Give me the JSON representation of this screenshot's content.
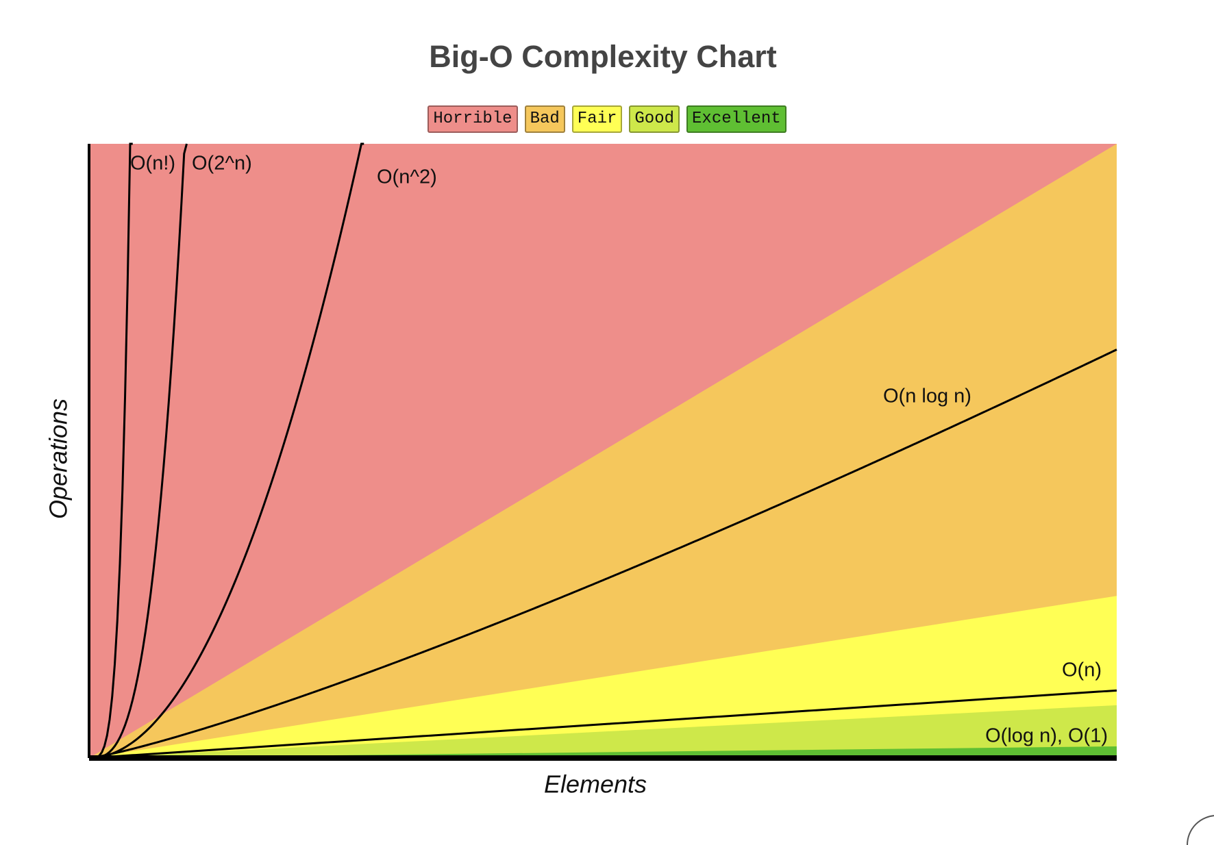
{
  "title": "Big-O Complexity Chart",
  "legend": [
    {
      "label": "Horrible",
      "color": "#ee8e8a"
    },
    {
      "label": "Bad",
      "color": "#f5c75c"
    },
    {
      "label": "Fair",
      "color": "#ffff55"
    },
    {
      "label": "Good",
      "color": "#cee84a"
    },
    {
      "label": "Excellent",
      "color": "#5fbf33"
    }
  ],
  "curves": [
    "O(n!)",
    "O(2^n)",
    "O(n^2)",
    "O(n log n)",
    "O(n)",
    "O(log n), O(1)"
  ],
  "axes": {
    "x": "Elements",
    "y": "Operations"
  }
}
